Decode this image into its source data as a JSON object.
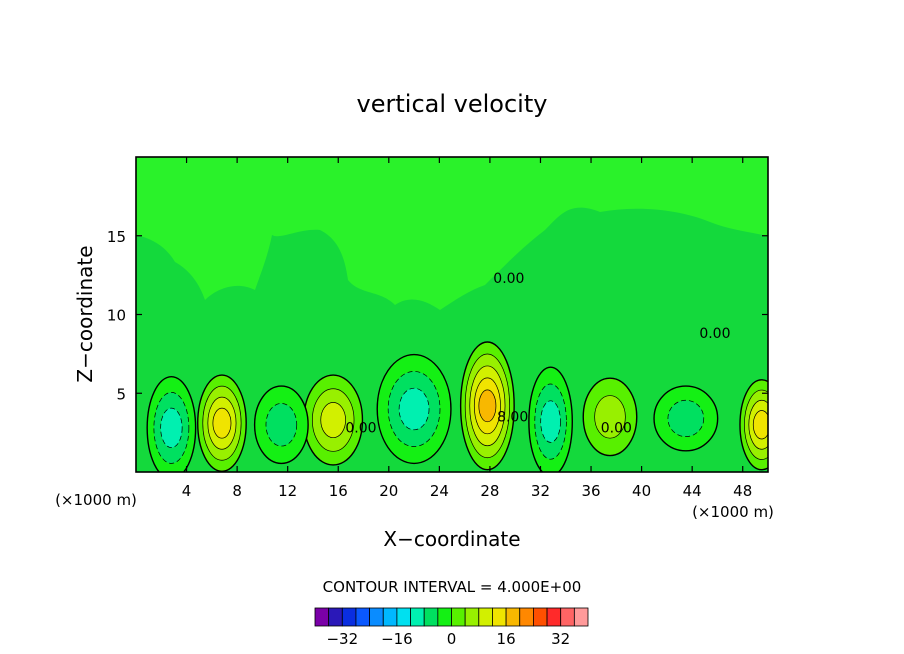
{
  "chart_data": {
    "type": "contour",
    "title": "vertical velocity",
    "xlabel": "X−coordinate",
    "ylabel": "Z−coordinate",
    "x_unit_left": "(×1000 m)",
    "x_unit_right": "(×1000 m)",
    "xlim": [
      0,
      50
    ],
    "ylim": [
      0,
      20
    ],
    "x_ticks": [
      4,
      8,
      12,
      16,
      20,
      24,
      28,
      32,
      36,
      40,
      44,
      48
    ],
    "y_ticks": [
      5,
      10,
      15
    ],
    "contour_interval_text": "CONTOUR INTERVAL = 4.000E+00",
    "contour_labels": [
      {
        "text": "0.00",
        "x": 29.5,
        "y": 12.0
      },
      {
        "text": "8.00",
        "x": 29.8,
        "y": 3.2
      },
      {
        "text": "0.00",
        "x": 38.0,
        "y": 2.5
      },
      {
        "text": "0.00",
        "x": 45.8,
        "y": 8.5
      },
      {
        "text": "0.00",
        "x": 17.8,
        "y": 2.5
      }
    ],
    "features": [
      {
        "name": "updraft",
        "x": 6.8,
        "y": 3.1,
        "rx": 1.6,
        "ry": 2.8,
        "max": 12
      },
      {
        "name": "updraft",
        "x": 15.6,
        "y": 3.3,
        "rx": 2.0,
        "ry": 2.6,
        "max": 8
      },
      {
        "name": "updraft",
        "x": 27.8,
        "y": 4.2,
        "rx": 1.8,
        "ry": 3.8,
        "max": 16
      },
      {
        "name": "updraft",
        "x": 49.5,
        "y": 3.0,
        "rx": 1.4,
        "ry": 2.6,
        "max": 12
      },
      {
        "name": "updraft",
        "x": 37.5,
        "y": 3.5,
        "rx": 1.8,
        "ry": 2.2,
        "max": 4
      },
      {
        "name": "downdraft",
        "x": 2.8,
        "y": 2.8,
        "rx": 1.6,
        "ry": 3.0,
        "min": -8
      },
      {
        "name": "downdraft",
        "x": 11.5,
        "y": 3.0,
        "rx": 1.8,
        "ry": 2.2,
        "min": -4
      },
      {
        "name": "downdraft",
        "x": 22.0,
        "y": 4.0,
        "rx": 2.6,
        "ry": 3.2,
        "min": -8
      },
      {
        "name": "downdraft",
        "x": 32.8,
        "y": 3.2,
        "rx": 1.4,
        "ry": 3.2,
        "min": -8
      },
      {
        "name": "downdraft",
        "x": 43.5,
        "y": 3.4,
        "rx": 2.2,
        "ry": 1.8,
        "min": -4
      }
    ],
    "colorbar": {
      "tick_labels": [
        "−32",
        "−16",
        "0",
        "16",
        "32"
      ],
      "tick_values": [
        -32,
        -16,
        0,
        16,
        32
      ],
      "colors": [
        "#7a00a8",
        "#2a18b8",
        "#0a2ee0",
        "#0a58ff",
        "#0a8cff",
        "#00b8ff",
        "#00e0f0",
        "#00f0b0",
        "#00e060",
        "#14f014",
        "#58f000",
        "#98f000",
        "#d2f000",
        "#f0e400",
        "#f8b800",
        "#ff8800",
        "#ff5000",
        "#ff2a2a",
        "#ff6464",
        "#ff9a9a"
      ]
    }
  }
}
